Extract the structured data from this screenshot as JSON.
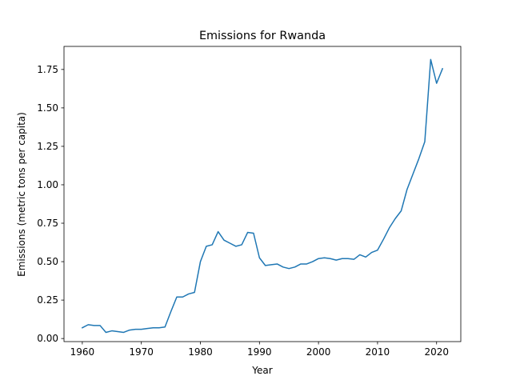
{
  "chart_data": {
    "type": "line",
    "title": "Emissions for Rwanda",
    "xlabel": "Year",
    "ylabel": "Emissions (metric tons per capita)",
    "xlim": [
      1956.9,
      2024.1
    ],
    "ylim": [
      -0.02,
      1.9
    ],
    "x_ticks": [
      1960,
      1970,
      1980,
      1990,
      2000,
      2010,
      2020
    ],
    "y_ticks": [
      0.0,
      0.25,
      0.5,
      0.75,
      1.0,
      1.25,
      1.5,
      1.75
    ],
    "y_tick_labels": [
      "0.00",
      "0.25",
      "0.50",
      "0.75",
      "1.00",
      "1.25",
      "1.50",
      "1.75"
    ],
    "grid": false,
    "line_color": "#1f77b4",
    "series": [
      {
        "x": [
          1960,
          1961,
          1962,
          1963,
          1964,
          1965,
          1966,
          1967,
          1968,
          1969,
          1970,
          1971,
          1972,
          1973,
          1974,
          1975,
          1976,
          1977,
          1978,
          1979,
          1980,
          1981,
          1982,
          1983,
          1984,
          1985,
          1986,
          1987,
          1988,
          1989,
          1990,
          1991,
          1992,
          1993,
          1994,
          1995,
          1996,
          1997,
          1998,
          1999,
          2000,
          2001,
          2002,
          2003,
          2004,
          2005,
          2006,
          2007,
          2008,
          2009,
          2010,
          2011,
          2012,
          2013,
          2014,
          2015,
          2016,
          2017,
          2018,
          2019,
          2020,
          2021
        ],
        "values": [
          0.07,
          0.09,
          0.085,
          0.085,
          0.04,
          0.05,
          0.045,
          0.04,
          0.055,
          0.06,
          0.06,
          0.065,
          0.07,
          0.07,
          0.075,
          0.175,
          0.27,
          0.27,
          0.29,
          0.3,
          0.5,
          0.6,
          0.61,
          0.695,
          0.64,
          0.62,
          0.6,
          0.61,
          0.69,
          0.685,
          0.525,
          0.475,
          0.48,
          0.485,
          0.465,
          0.455,
          0.465,
          0.485,
          0.485,
          0.5,
          0.52,
          0.525,
          0.52,
          0.51,
          0.52,
          0.52,
          0.515,
          0.545,
          0.53,
          0.56,
          0.575,
          0.645,
          0.72,
          0.78,
          0.83,
          0.97,
          1.07,
          1.17,
          1.28,
          1.815,
          1.66,
          1.755
        ]
      }
    ]
  }
}
